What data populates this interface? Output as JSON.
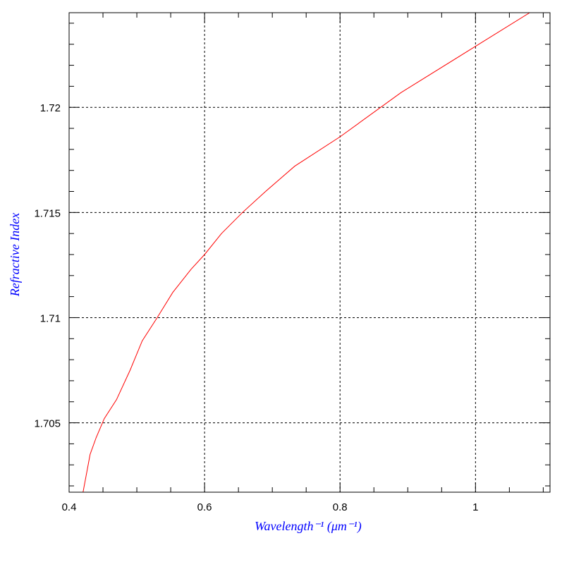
{
  "chart_data": {
    "type": "line",
    "xlabel": "Wavelength⁻¹ (μm⁻¹)",
    "ylabel": "Refractive Index",
    "xlim": [
      0.4,
      1.11
    ],
    "ylim": [
      1.7017,
      1.7245
    ],
    "x_ticks": [
      0.4,
      0.6,
      0.8,
      1.0
    ],
    "x_tick_labels": [
      "0.4",
      "0.6",
      "0.8",
      "1"
    ],
    "y_ticks": [
      1.705,
      1.71,
      1.715,
      1.72
    ],
    "y_tick_labels": [
      "1.705",
      "1.71",
      "1.715",
      "1.72"
    ],
    "x_minor_step": 0.05,
    "y_minor_step": 0.001,
    "grid": true,
    "series": [
      {
        "color": "#ff0000",
        "x": [
          0.42,
          0.431,
          0.44,
          0.452,
          0.47,
          0.49,
          0.508,
          0.53,
          0.553,
          0.58,
          0.6,
          0.625,
          0.656,
          0.69,
          0.733,
          0.8,
          0.89,
          1.0,
          1.08
        ],
        "y": [
          1.7016,
          1.7035,
          1.7043,
          1.7052,
          1.7061,
          1.7075,
          1.7089,
          1.71,
          1.7112,
          1.7123,
          1.713,
          1.714,
          1.715,
          1.716,
          1.7172,
          1.7186,
          1.7207,
          1.7229,
          1.7245
        ]
      }
    ]
  }
}
